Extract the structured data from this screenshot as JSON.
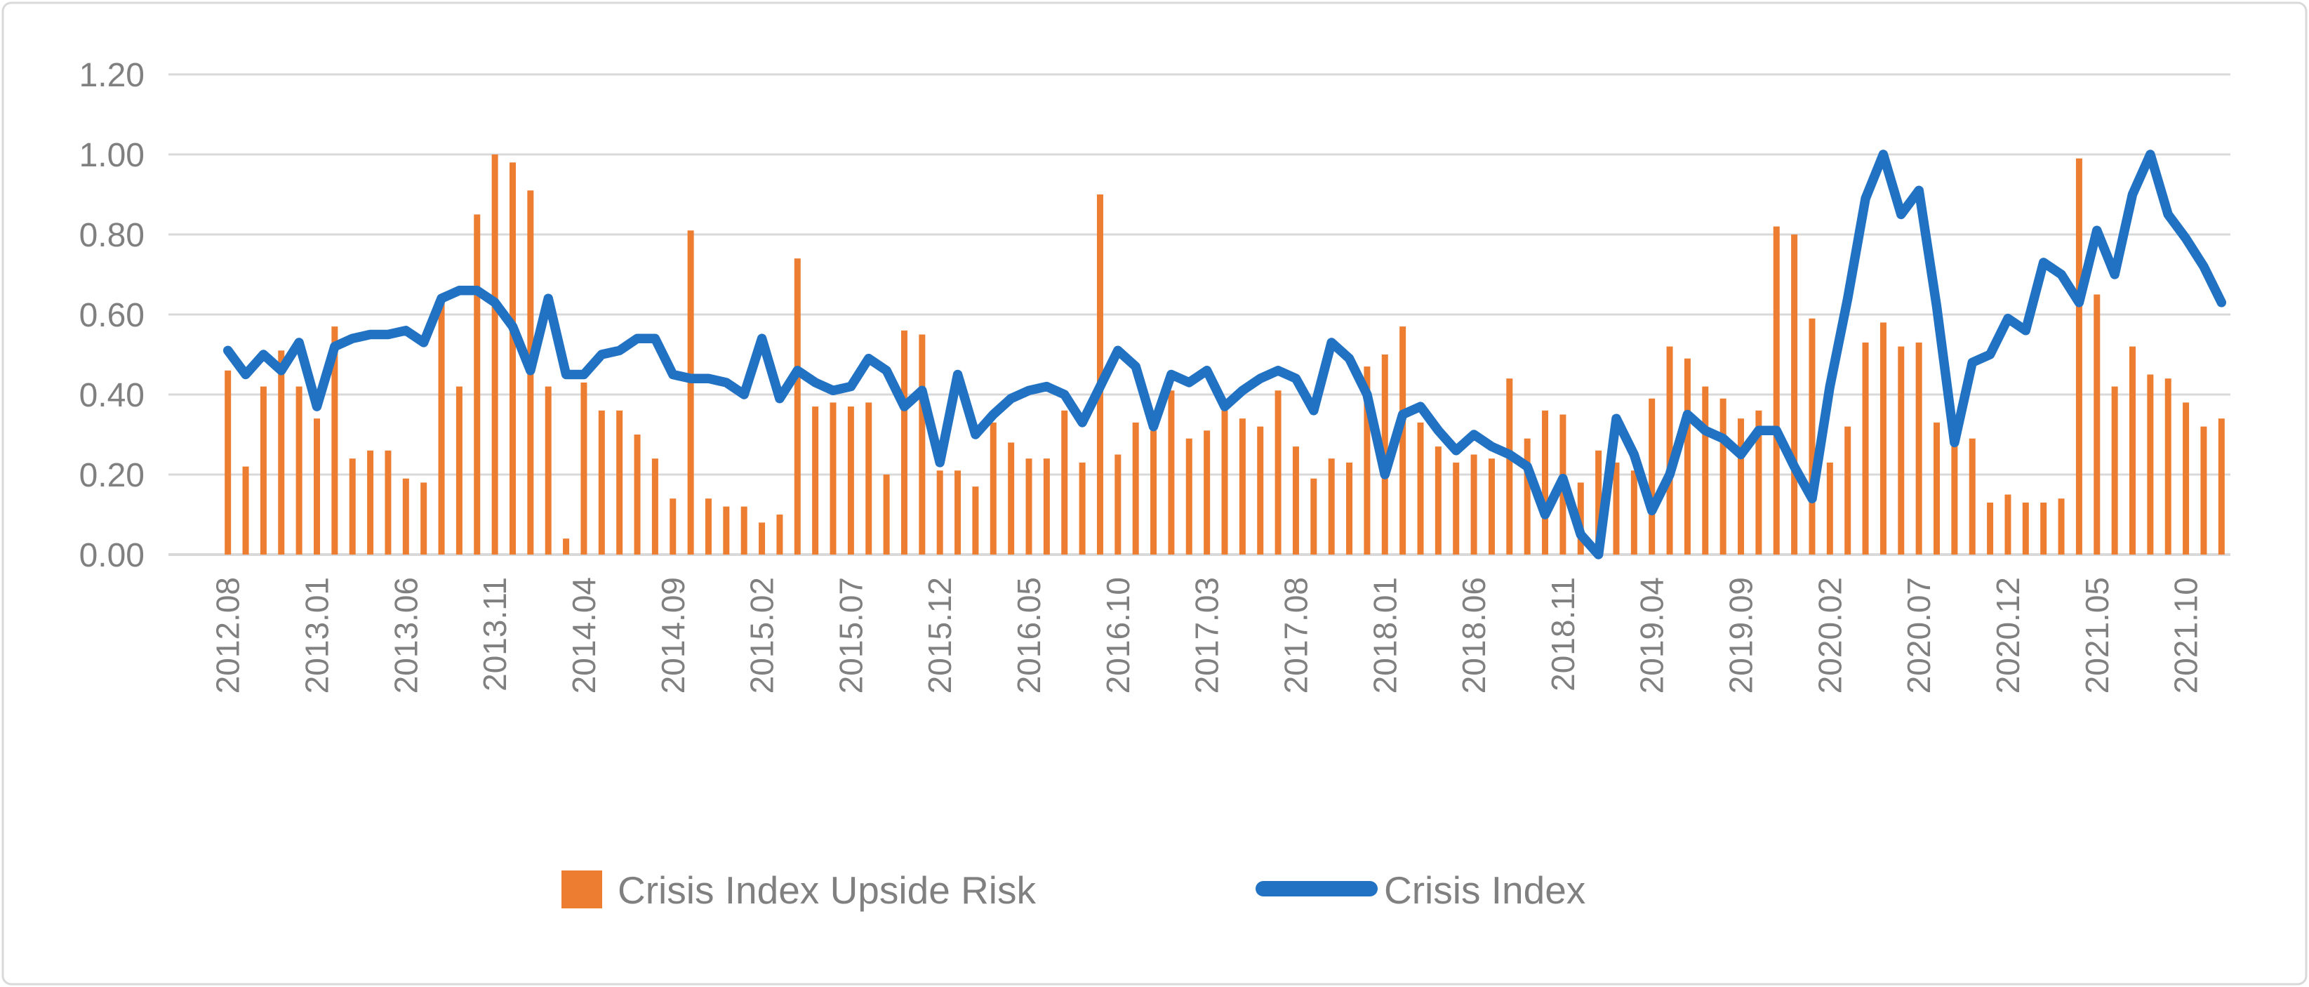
{
  "colors": {
    "bar": "#ED7D31",
    "line": "#2272C4",
    "gridline": "#D9D9D9",
    "axis_line": "#D9D9D9",
    "tick_text": "#808080",
    "legend_text": "#808080",
    "frame_border": "#D9D9D9",
    "background": "#FFFFFF"
  },
  "legend": {
    "bar_label": "Crisis Index Upside Risk",
    "line_label": "Crisis Index"
  },
  "y_axis": {
    "tick_labels": [
      "0.00",
      "0.20",
      "0.40",
      "0.60",
      "0.80",
      "1.00",
      "1.20"
    ],
    "min": 0.0,
    "max": 1.2,
    "step": 0.2
  },
  "x_axis": {
    "shown_tick_labels": [
      "2012.08",
      "2013.01",
      "2013.06",
      "2013.11",
      "2014.04",
      "2014.09",
      "2015.02",
      "2015.07",
      "2015.12",
      "2016.05",
      "2016.10",
      "2017.03",
      "2017.08",
      "2018.01",
      "2018.06",
      "2018.11",
      "2019.04",
      "2019.09",
      "2020.02",
      "2020.07",
      "2020.12",
      "2021.05",
      "2021.10"
    ],
    "label_every_n_months": 5
  },
  "chart_data": {
    "type": "combo",
    "title": "",
    "xlabel": "",
    "ylabel": "",
    "ylim": [
      0,
      1.2
    ],
    "grid": true,
    "legend_position": "bottom-center",
    "categories": [
      "2012.08",
      "2012.09",
      "2012.10",
      "2012.11",
      "2012.12",
      "2013.01",
      "2013.02",
      "2013.03",
      "2013.04",
      "2013.05",
      "2013.06",
      "2013.07",
      "2013.08",
      "2013.09",
      "2013.10",
      "2013.11",
      "2013.12",
      "2014.01",
      "2014.02",
      "2014.03",
      "2014.04",
      "2014.05",
      "2014.06",
      "2014.07",
      "2014.08",
      "2014.09",
      "2014.10",
      "2014.11",
      "2014.12",
      "2015.01",
      "2015.02",
      "2015.03",
      "2015.04",
      "2015.05",
      "2015.06",
      "2015.07",
      "2015.08",
      "2015.09",
      "2015.10",
      "2015.11",
      "2015.12",
      "2016.01",
      "2016.02",
      "2016.03",
      "2016.04",
      "2016.05",
      "2016.06",
      "2016.07",
      "2016.08",
      "2016.09",
      "2016.10",
      "2016.11",
      "2016.12",
      "2017.01",
      "2017.02",
      "2017.03",
      "2017.04",
      "2017.05",
      "2017.06",
      "2017.07",
      "2017.08",
      "2017.09",
      "2017.10",
      "2017.11",
      "2017.12",
      "2018.01",
      "2018.02",
      "2018.03",
      "2018.04",
      "2018.05",
      "2018.06",
      "2018.07",
      "2018.08",
      "2018.09",
      "2018.10",
      "2018.11",
      "2018.12",
      "2019.01",
      "2019.02",
      "2019.03",
      "2019.04",
      "2019.05",
      "2019.06",
      "2019.07",
      "2019.08",
      "2019.09",
      "2019.10",
      "2019.11",
      "2019.12",
      "2020.01",
      "2020.02",
      "2020.03",
      "2020.04",
      "2020.05",
      "2020.06",
      "2020.07",
      "2020.08",
      "2020.09",
      "2020.10",
      "2020.11",
      "2020.12",
      "2021.01",
      "2021.02",
      "2021.03",
      "2021.04",
      "2021.05",
      "2021.06",
      "2021.07",
      "2021.08",
      "2021.09",
      "2021.10",
      "2021.11",
      "2021.12"
    ],
    "series": [
      {
        "name": "Crisis Index Upside Risk",
        "type": "bar",
        "values": [
          0.46,
          0.22,
          0.42,
          0.51,
          0.42,
          0.34,
          0.57,
          0.24,
          0.26,
          0.26,
          0.19,
          0.18,
          0.63,
          0.42,
          0.85,
          1.0,
          0.98,
          0.91,
          0.42,
          0.04,
          0.43,
          0.36,
          0.36,
          0.3,
          0.24,
          0.14,
          0.81,
          0.14,
          0.12,
          0.12,
          0.08,
          0.1,
          0.74,
          0.37,
          0.38,
          0.37,
          0.38,
          0.2,
          0.56,
          0.55,
          0.21,
          0.21,
          0.17,
          0.33,
          0.28,
          0.24,
          0.24,
          0.36,
          0.23,
          0.9,
          0.25,
          0.33,
          0.31,
          0.41,
          0.29,
          0.31,
          0.36,
          0.34,
          0.32,
          0.41,
          0.27,
          0.19,
          0.24,
          0.23,
          0.47,
          0.5,
          0.57,
          0.33,
          0.27,
          0.23,
          0.25,
          0.24,
          0.44,
          0.29,
          0.36,
          0.35,
          0.18,
          0.26,
          0.23,
          0.21,
          0.39,
          0.52,
          0.49,
          0.42,
          0.39,
          0.34,
          0.36,
          0.82,
          0.8,
          0.59,
          0.23,
          0.32,
          0.53,
          0.58,
          0.52,
          0.53,
          0.33,
          0.28,
          0.29,
          0.13,
          0.15,
          0.13,
          0.13,
          0.14,
          0.99,
          0.65,
          0.42,
          0.52,
          0.45,
          0.44,
          0.38,
          0.32,
          0.34
        ]
      },
      {
        "name": "Crisis Index",
        "type": "line",
        "values": [
          0.51,
          0.45,
          0.5,
          0.46,
          0.53,
          0.37,
          0.52,
          0.54,
          0.55,
          0.55,
          0.56,
          0.53,
          0.64,
          0.66,
          0.66,
          0.63,
          0.57,
          0.46,
          0.64,
          0.45,
          0.45,
          0.5,
          0.51,
          0.54,
          0.54,
          0.45,
          0.44,
          0.44,
          0.43,
          0.4,
          0.54,
          0.39,
          0.46,
          0.43,
          0.41,
          0.42,
          0.49,
          0.46,
          0.37,
          0.41,
          0.23,
          0.45,
          0.3,
          0.35,
          0.39,
          0.41,
          0.42,
          0.4,
          0.33,
          0.42,
          0.51,
          0.47,
          0.32,
          0.45,
          0.43,
          0.46,
          0.37,
          0.41,
          0.44,
          0.46,
          0.44,
          0.36,
          0.53,
          0.49,
          0.4,
          0.2,
          0.35,
          0.37,
          0.31,
          0.26,
          0.3,
          0.27,
          0.25,
          0.22,
          0.1,
          0.19,
          0.05,
          0.0,
          0.34,
          0.25,
          0.11,
          0.2,
          0.35,
          0.31,
          0.29,
          0.25,
          0.31,
          0.31,
          0.22,
          0.14,
          0.42,
          0.64,
          0.89,
          1.0,
          0.85,
          0.91,
          0.62,
          0.28,
          0.48,
          0.5,
          0.59,
          0.56,
          0.73,
          0.7,
          0.63,
          0.81,
          0.7,
          0.9,
          1.0,
          0.85,
          0.79,
          0.72,
          0.63
        ]
      }
    ]
  }
}
